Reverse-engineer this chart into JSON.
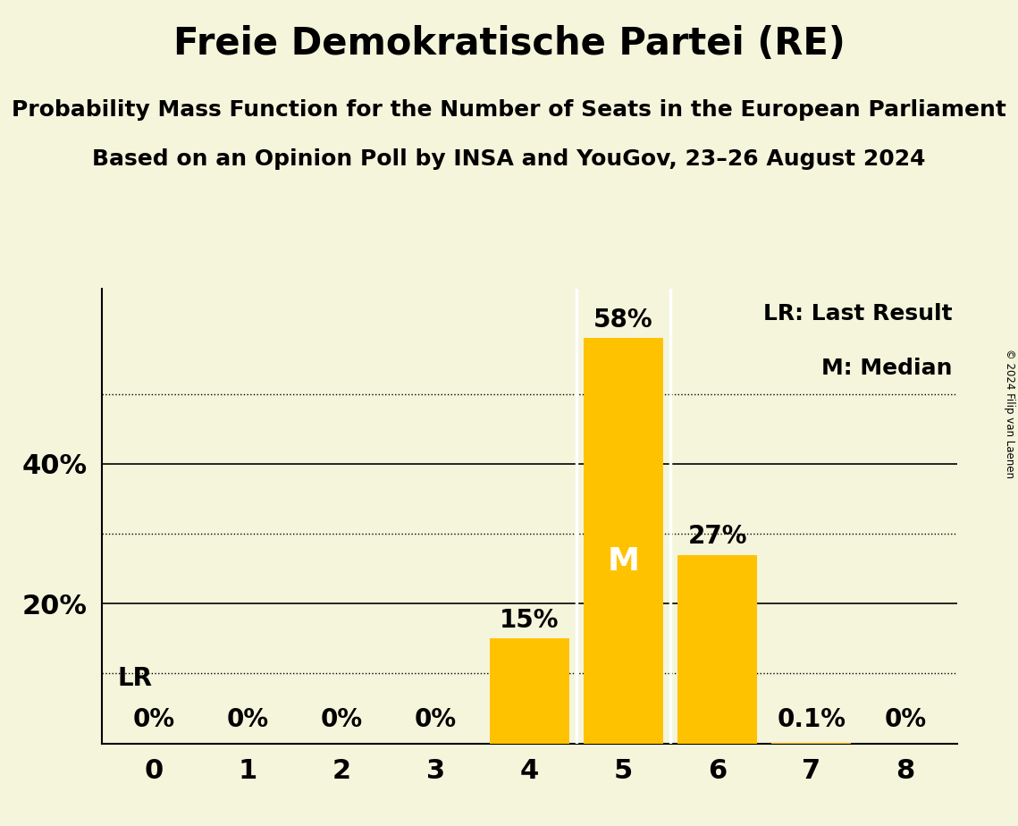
{
  "title": "Freie Demokratische Partei (RE)",
  "subtitle1": "Probability Mass Function for the Number of Seats in the European Parliament",
  "subtitle2": "Based on an Opinion Poll by INSA and YouGov, 23–26 August 2024",
  "copyright": "© 2024 Filip van Laenen",
  "categories": [
    0,
    1,
    2,
    3,
    4,
    5,
    6,
    7,
    8
  ],
  "values": [
    0.0,
    0.0,
    0.0,
    0.0,
    15.0,
    58.0,
    27.0,
    0.1,
    0.0
  ],
  "bar_color": "#FFC200",
  "background_color": "#F5F5DC",
  "median": 5,
  "last_result": 0,
  "labels": [
    "0%",
    "0%",
    "0%",
    "0%",
    "15%",
    "58%",
    "27%",
    "0.1%",
    "0%"
  ],
  "ylabel_ticks": [
    20,
    40
  ],
  "dotted_lines": [
    10,
    30,
    50
  ],
  "ylim": [
    0,
    65
  ],
  "legend_lr": "LR: Last Result",
  "legend_m": "M: Median"
}
